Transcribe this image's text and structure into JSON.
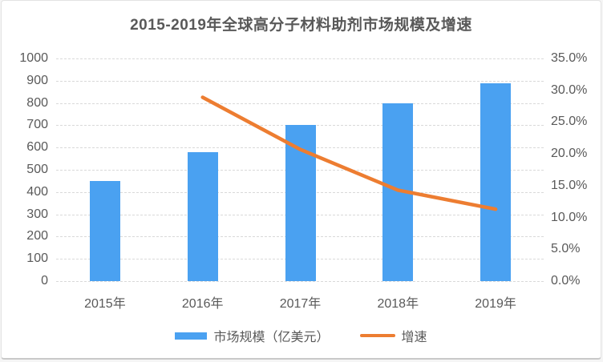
{
  "chart_data": {
    "type": "bar+line",
    "title": "2015-2019年全球高分子材料助剂市场规模及增速",
    "categories": [
      "2015年",
      "2016年",
      "2017年",
      "2018年",
      "2019年"
    ],
    "series": [
      {
        "name": "市场规模（亿美元）",
        "type": "bar",
        "axis": "left",
        "color": "#4AA1F1",
        "values": [
          450,
          580,
          700,
          800,
          890
        ]
      },
      {
        "name": "增速",
        "type": "line",
        "axis": "right",
        "color": "#ED7D31",
        "values": [
          null,
          28.9,
          20.7,
          14.3,
          11.3
        ]
      }
    ],
    "left_axis": {
      "min": 0,
      "max": 1000,
      "step": 100,
      "ticks": [
        "1000",
        "900",
        "800",
        "700",
        "600",
        "500",
        "400",
        "300",
        "200",
        "100",
        "0"
      ]
    },
    "right_axis": {
      "min": 0,
      "max": 35,
      "step": 5,
      "ticks": [
        "35.0%",
        "30.0%",
        "25.0%",
        "20.0%",
        "15.0%",
        "10.0%",
        "5.0%",
        "0.0%"
      ]
    },
    "grid": true,
    "legend_position": "bottom"
  },
  "colors": {
    "bar": "#4AA1F1",
    "line": "#ED7D31",
    "gridline": "#D9D9D9",
    "axis_text": "#595959",
    "title_text": "#595959",
    "card_background": "#FFFFFF",
    "card_border": "#E3E3E3"
  }
}
